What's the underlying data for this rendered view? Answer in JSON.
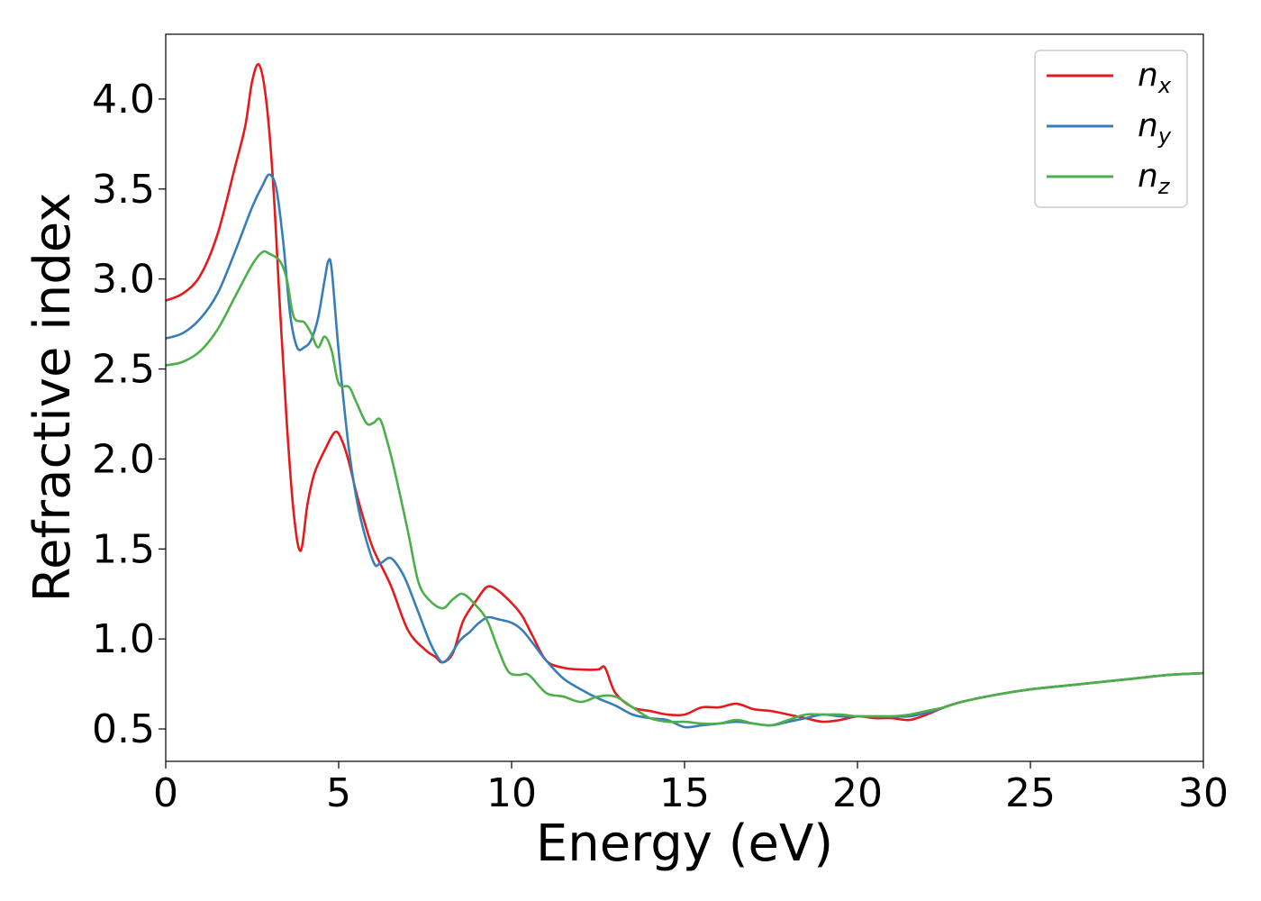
{
  "chart_data": {
    "type": "line",
    "xlabel": "Energy (eV)",
    "ylabel": "Refractive index",
    "xlim": [
      0,
      30
    ],
    "ylim": [
      0.32,
      4.36
    ],
    "xticks": [
      0,
      5,
      10,
      15,
      20,
      25,
      30
    ],
    "xtick_labels": [
      "0",
      "5",
      "10",
      "15",
      "20",
      "25",
      "30"
    ],
    "yticks": [
      0.5,
      1.0,
      1.5,
      2.0,
      2.5,
      3.0,
      3.5,
      4.0
    ],
    "ytick_labels": [
      "0.5",
      "1.0",
      "1.5",
      "2.0",
      "2.5",
      "3.0",
      "3.5",
      "4.0"
    ],
    "grid": false,
    "legend_position": "top-right",
    "series": [
      {
        "name": "n_x",
        "label_main": "n",
        "label_sub": "x",
        "color": "#e41a1c",
        "x": [
          0,
          0.5,
          1.0,
          1.5,
          2.0,
          2.3,
          2.5,
          2.7,
          2.9,
          3.1,
          3.3,
          3.5,
          3.7,
          3.9,
          4.1,
          4.3,
          4.6,
          4.9,
          5.1,
          5.3,
          5.5,
          5.7,
          6.0,
          6.5,
          7.0,
          7.5,
          7.8,
          8.0,
          8.3,
          8.6,
          9.0,
          9.3,
          9.6,
          10.0,
          10.3,
          10.6,
          11.0,
          11.5,
          12.0,
          12.5,
          12.7,
          13.0,
          13.5,
          14.0,
          14.5,
          15.0,
          15.5,
          16.0,
          16.5,
          17.0,
          17.5,
          18.0,
          18.5,
          19.0,
          19.5,
          20.0,
          20.5,
          21.0,
          21.5,
          22.0,
          22.5,
          23.0,
          24.0,
          25.0,
          26.0,
          27.0,
          28.0,
          29.0,
          30.0
        ],
        "y": [
          2.88,
          2.92,
          3.02,
          3.25,
          3.62,
          3.85,
          4.1,
          4.19,
          4.0,
          3.55,
          2.85,
          2.2,
          1.7,
          1.49,
          1.75,
          1.92,
          2.05,
          2.15,
          2.1,
          1.98,
          1.82,
          1.68,
          1.5,
          1.3,
          1.05,
          0.94,
          0.9,
          0.87,
          0.92,
          1.1,
          1.22,
          1.29,
          1.27,
          1.2,
          1.13,
          1.02,
          0.88,
          0.84,
          0.83,
          0.83,
          0.84,
          0.7,
          0.62,
          0.6,
          0.58,
          0.58,
          0.62,
          0.62,
          0.64,
          0.61,
          0.6,
          0.58,
          0.56,
          0.54,
          0.55,
          0.57,
          0.56,
          0.56,
          0.55,
          0.58,
          0.62,
          0.65,
          0.69,
          0.72,
          0.74,
          0.76,
          0.78,
          0.8,
          0.81
        ]
      },
      {
        "name": "n_y",
        "label_main": "n",
        "label_sub": "y",
        "color": "#377eb8",
        "x": [
          0,
          0.5,
          1.0,
          1.5,
          2.0,
          2.5,
          2.8,
          3.0,
          3.2,
          3.4,
          3.6,
          3.8,
          4.0,
          4.2,
          4.4,
          4.6,
          4.7,
          4.8,
          5.0,
          5.3,
          5.6,
          6.0,
          6.2,
          6.5,
          6.8,
          7.0,
          7.3,
          7.6,
          7.8,
          8.0,
          8.2,
          8.5,
          8.8,
          9.0,
          9.3,
          9.6,
          10.0,
          10.3,
          10.6,
          11.0,
          11.5,
          12.0,
          12.5,
          13.0,
          13.5,
          14.0,
          14.5,
          15.0,
          15.5,
          16.0,
          16.5,
          17.0,
          17.5,
          18.0,
          18.5,
          19.0,
          19.5,
          20.0,
          20.5,
          21.0,
          21.5,
          22.0,
          22.5,
          23.0,
          24.0,
          25.0,
          26.0,
          27.0,
          28.0,
          29.0,
          30.0
        ],
        "y": [
          2.67,
          2.7,
          2.78,
          2.92,
          3.15,
          3.4,
          3.52,
          3.58,
          3.5,
          3.2,
          2.8,
          2.62,
          2.62,
          2.66,
          2.78,
          3.0,
          3.1,
          3.05,
          2.6,
          2.05,
          1.7,
          1.43,
          1.42,
          1.45,
          1.38,
          1.3,
          1.15,
          1.0,
          0.92,
          0.87,
          0.9,
          0.99,
          1.04,
          1.08,
          1.12,
          1.11,
          1.09,
          1.05,
          0.98,
          0.88,
          0.78,
          0.72,
          0.67,
          0.63,
          0.58,
          0.56,
          0.55,
          0.51,
          0.52,
          0.53,
          0.54,
          0.53,
          0.52,
          0.54,
          0.56,
          0.58,
          0.57,
          0.57,
          0.57,
          0.57,
          0.57,
          0.59,
          0.62,
          0.65,
          0.69,
          0.72,
          0.74,
          0.76,
          0.78,
          0.8,
          0.81
        ]
      },
      {
        "name": "n_z",
        "label_main": "n",
        "label_sub": "z",
        "color": "#4daf4a",
        "x": [
          0,
          0.5,
          1.0,
          1.5,
          2.0,
          2.5,
          2.8,
          3.0,
          3.3,
          3.5,
          3.7,
          4.0,
          4.2,
          4.4,
          4.6,
          4.8,
          5.0,
          5.3,
          5.5,
          5.8,
          6.0,
          6.2,
          6.4,
          6.6,
          7.0,
          7.3,
          7.6,
          8.0,
          8.3,
          8.6,
          9.0,
          9.3,
          9.6,
          9.9,
          10.2,
          10.5,
          11.0,
          11.5,
          12.0,
          12.5,
          13.0,
          13.5,
          14.0,
          14.5,
          15.0,
          15.5,
          16.0,
          16.5,
          17.0,
          17.5,
          18.0,
          18.5,
          19.0,
          19.5,
          20.0,
          20.5,
          21.0,
          21.5,
          22.0,
          22.5,
          23.0,
          24.0,
          25.0,
          26.0,
          27.0,
          28.0,
          29.0,
          30.0
        ],
        "y": [
          2.52,
          2.54,
          2.6,
          2.72,
          2.9,
          3.08,
          3.15,
          3.14,
          3.1,
          3.0,
          2.79,
          2.76,
          2.7,
          2.62,
          2.68,
          2.6,
          2.42,
          2.4,
          2.32,
          2.2,
          2.2,
          2.22,
          2.1,
          1.95,
          1.6,
          1.32,
          1.22,
          1.17,
          1.22,
          1.25,
          1.18,
          1.1,
          0.95,
          0.82,
          0.8,
          0.8,
          0.7,
          0.68,
          0.65,
          0.68,
          0.68,
          0.62,
          0.56,
          0.54,
          0.54,
          0.53,
          0.53,
          0.55,
          0.53,
          0.52,
          0.55,
          0.58,
          0.58,
          0.58,
          0.57,
          0.57,
          0.57,
          0.58,
          0.6,
          0.62,
          0.65,
          0.69,
          0.72,
          0.74,
          0.76,
          0.78,
          0.8,
          0.81
        ]
      }
    ]
  }
}
